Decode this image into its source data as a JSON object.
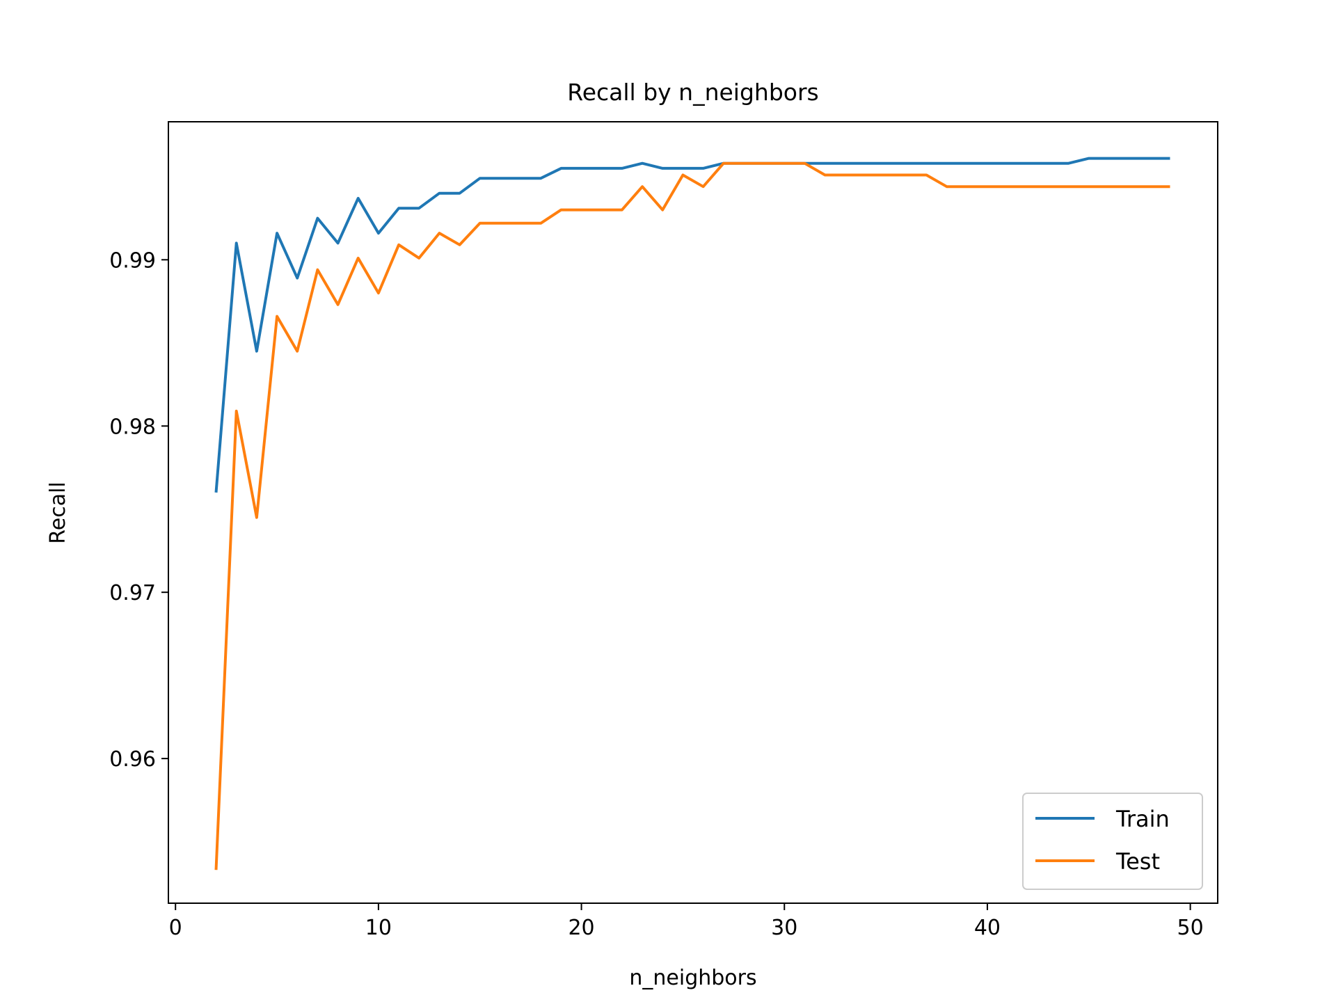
{
  "chart_data": {
    "type": "line",
    "title": "Recall by n_neighbors",
    "xlabel": "n_neighbors",
    "ylabel": "Recall",
    "xlim": [
      -0.35,
      51.35
    ],
    "ylim": [
      0.9513,
      0.9983
    ],
    "xticks": [
      0,
      10,
      20,
      30,
      40,
      50
    ],
    "xtick_labels": [
      "0",
      "10",
      "20",
      "30",
      "40",
      "50"
    ],
    "yticks": [
      0.96,
      0.97,
      0.98,
      0.99
    ],
    "ytick_labels": [
      "0.96",
      "0.97",
      "0.98",
      "0.99"
    ],
    "grid": false,
    "legend_position": "lower-right",
    "x": [
      2,
      3,
      4,
      5,
      6,
      7,
      8,
      9,
      10,
      11,
      12,
      13,
      14,
      15,
      16,
      17,
      18,
      19,
      20,
      21,
      22,
      23,
      24,
      25,
      26,
      27,
      28,
      29,
      30,
      31,
      32,
      33,
      34,
      35,
      36,
      37,
      38,
      39,
      40,
      41,
      42,
      43,
      44,
      45,
      46,
      47,
      48,
      49
    ],
    "series": [
      {
        "name": "Train",
        "color": "#1f77b4",
        "values": [
          0.976,
          0.991,
          0.9845,
          0.9916,
          0.9889,
          0.9925,
          0.991,
          0.9937,
          0.9916,
          0.9931,
          0.9931,
          0.994,
          0.994,
          0.9949,
          0.9949,
          0.9949,
          0.9949,
          0.9955,
          0.9955,
          0.9955,
          0.9955,
          0.9958,
          0.9955,
          0.9955,
          0.9955,
          0.9958,
          0.9958,
          0.9958,
          0.9958,
          0.9958,
          0.9958,
          0.9958,
          0.9958,
          0.9958,
          0.9958,
          0.9958,
          0.9958,
          0.9958,
          0.9958,
          0.9958,
          0.9958,
          0.9958,
          0.9958,
          0.9961,
          0.9961,
          0.9961,
          0.9961,
          0.9961
        ]
      },
      {
        "name": "Test",
        "color": "#ff7f0e",
        "values": [
          0.9533,
          0.9809,
          0.9745,
          0.9866,
          0.9845,
          0.9894,
          0.9873,
          0.9901,
          0.988,
          0.9909,
          0.9901,
          0.9916,
          0.9909,
          0.9922,
          0.9922,
          0.9922,
          0.9922,
          0.993,
          0.993,
          0.993,
          0.993,
          0.9944,
          0.993,
          0.9951,
          0.9944,
          0.9958,
          0.9958,
          0.9958,
          0.9958,
          0.9958,
          0.9951,
          0.9951,
          0.9951,
          0.9951,
          0.9951,
          0.9951,
          0.9944,
          0.9944,
          0.9944,
          0.9944,
          0.9944,
          0.9944,
          0.9944,
          0.9944,
          0.9944,
          0.9944,
          0.9944,
          0.9944
        ]
      }
    ]
  }
}
